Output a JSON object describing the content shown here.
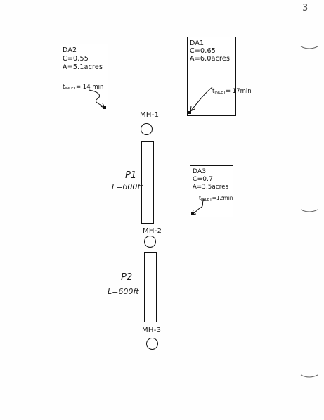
{
  "page_number": "3",
  "drainage_areas": [
    {
      "id": "da2",
      "name": "DA2",
      "c": "C=0.55",
      "a": "A=5.1acres",
      "t_prefix": "t",
      "t_sub": "INLET",
      "t_value": "= 14 min"
    },
    {
      "id": "da1",
      "name": "DA1",
      "c": "C=0.65",
      "a": "A=6.0acres",
      "t_prefix": "t",
      "t_sub": "INLET",
      "t_value": "= 17min"
    },
    {
      "id": "da3",
      "name": "DA3",
      "c": "C=0.7",
      "a": "A=3.5acres",
      "t_prefix": "t",
      "t_sub": "INLET",
      "t_value": "=12min"
    }
  ],
  "manholes": [
    {
      "id": "mh1",
      "label": "MH-1"
    },
    {
      "id": "mh2",
      "label": "MH-2"
    },
    {
      "id": "mh3",
      "label": "MH-3"
    }
  ],
  "pipes": [
    {
      "id": "p1",
      "name": "P1",
      "length": "L=600ft"
    },
    {
      "id": "p2",
      "name": "P2",
      "length": "L=600ft"
    }
  ]
}
